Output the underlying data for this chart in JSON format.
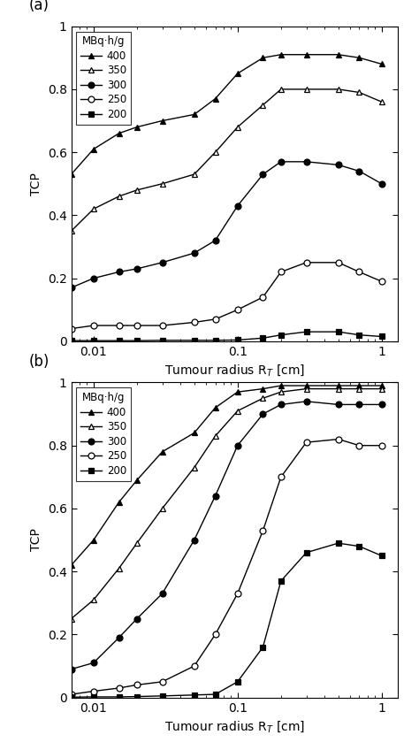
{
  "panel_a": {
    "x": [
      0.007,
      0.01,
      0.015,
      0.02,
      0.03,
      0.05,
      0.07,
      0.1,
      0.15,
      0.2,
      0.3,
      0.5,
      0.7,
      1.0
    ],
    "series": {
      "400": [
        0.53,
        0.61,
        0.66,
        0.68,
        0.7,
        0.72,
        0.77,
        0.85,
        0.9,
        0.91,
        0.91,
        0.91,
        0.9,
        0.88
      ],
      "350": [
        0.35,
        0.42,
        0.46,
        0.48,
        0.5,
        0.53,
        0.6,
        0.68,
        0.75,
        0.8,
        0.8,
        0.8,
        0.79,
        0.76
      ],
      "300": [
        0.17,
        0.2,
        0.22,
        0.23,
        0.25,
        0.28,
        0.32,
        0.43,
        0.53,
        0.57,
        0.57,
        0.56,
        0.54,
        0.5
      ],
      "250": [
        0.04,
        0.05,
        0.05,
        0.05,
        0.05,
        0.06,
        0.07,
        0.1,
        0.14,
        0.22,
        0.25,
        0.25,
        0.22,
        0.19
      ],
      "200": [
        0.002,
        0.002,
        0.002,
        0.002,
        0.003,
        0.003,
        0.003,
        0.004,
        0.01,
        0.02,
        0.03,
        0.03,
        0.02,
        0.015
      ]
    }
  },
  "panel_b": {
    "x": [
      0.007,
      0.01,
      0.015,
      0.02,
      0.03,
      0.05,
      0.07,
      0.1,
      0.15,
      0.2,
      0.3,
      0.5,
      0.7,
      1.0
    ],
    "series": {
      "400": [
        0.42,
        0.5,
        0.62,
        0.69,
        0.78,
        0.84,
        0.92,
        0.97,
        0.98,
        0.99,
        0.99,
        0.99,
        0.99,
        0.99
      ],
      "350": [
        0.25,
        0.31,
        0.41,
        0.49,
        0.6,
        0.73,
        0.83,
        0.91,
        0.95,
        0.97,
        0.98,
        0.98,
        0.98,
        0.98
      ],
      "300": [
        0.09,
        0.11,
        0.19,
        0.25,
        0.33,
        0.5,
        0.64,
        0.8,
        0.9,
        0.93,
        0.94,
        0.93,
        0.93,
        0.93
      ],
      "250": [
        0.01,
        0.02,
        0.03,
        0.04,
        0.05,
        0.1,
        0.2,
        0.33,
        0.53,
        0.7,
        0.81,
        0.82,
        0.8,
        0.8
      ],
      "200": [
        0.001,
        0.002,
        0.002,
        0.003,
        0.005,
        0.008,
        0.01,
        0.05,
        0.16,
        0.37,
        0.46,
        0.49,
        0.48,
        0.45
      ]
    }
  },
  "series_styles": {
    "400": {
      "marker": "^",
      "filled": true,
      "label": "400"
    },
    "350": {
      "marker": "^",
      "filled": false,
      "label": "350"
    },
    "300": {
      "marker": "o",
      "filled": true,
      "label": "300"
    },
    "250": {
      "marker": "o",
      "filled": false,
      "label": "250"
    },
    "200": {
      "marker": "s",
      "filled": true,
      "label": "200"
    }
  },
  "series_order": [
    "400",
    "350",
    "300",
    "250",
    "200"
  ],
  "xlim": [
    0.007,
    1.3
  ],
  "ylim": [
    0,
    1.0
  ],
  "xlabel": "Tumour radius R$_T$ [cm]",
  "ylabel": "TCP",
  "legend_title": "MBq·h/g",
  "panel_labels": [
    "(a)",
    "(b)"
  ],
  "figsize": [
    4.74,
    8.48
  ],
  "dpi": 100
}
